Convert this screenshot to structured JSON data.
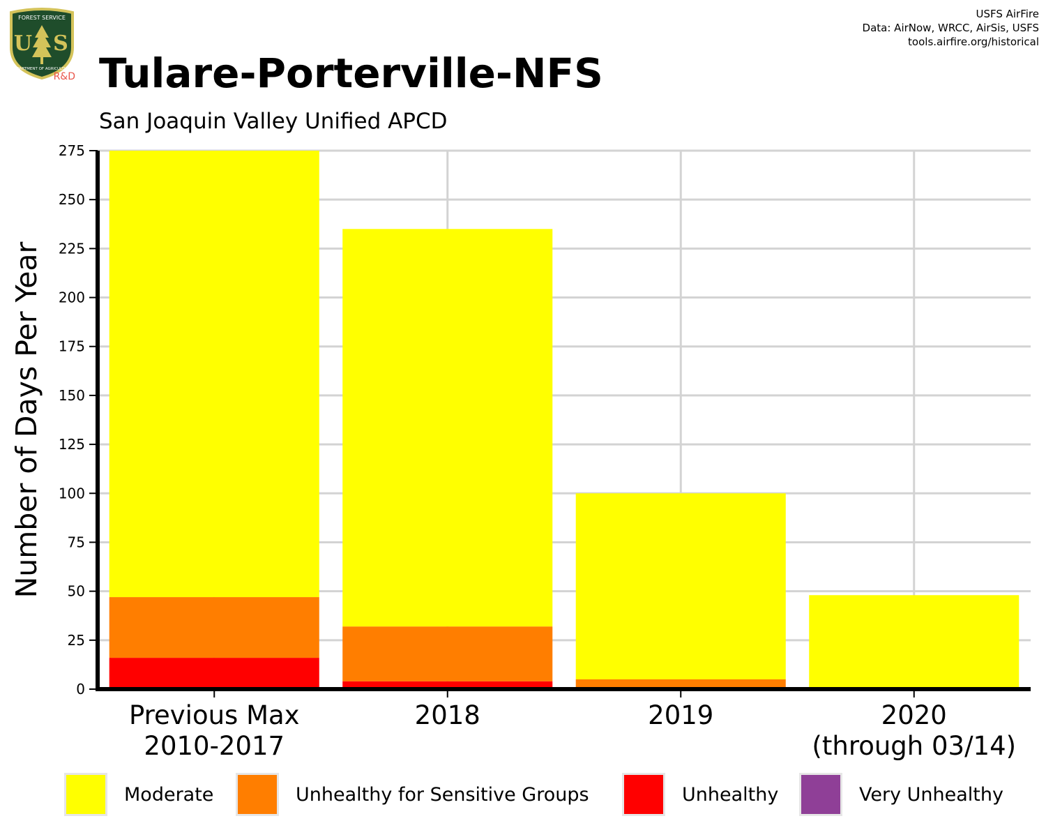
{
  "header": {
    "title": "Tulare-Porterville-NFS",
    "subtitle": "San Joaquin Valley Unified APCD",
    "credit_lines": [
      "USFS AirFire",
      "Data: AirNow, WRCC, AirSis, USFS",
      "tools.airfire.org/historical"
    ]
  },
  "logo": {
    "top_text": "FOREST SERVICE",
    "letters": "US",
    "bottom_text": "DEPARTMENT OF AGRICULTURE",
    "tag": "R&D",
    "colors": {
      "shield": "#1f4d2b",
      "trim": "#d4c35a",
      "tag": "#e8554a"
    }
  },
  "chart_data": {
    "type": "bar",
    "stacked": true,
    "categories": [
      [
        "Previous Max",
        "2010-2017"
      ],
      [
        "2018"
      ],
      [
        "2019"
      ],
      [
        "2020",
        "(through 03/14)"
      ]
    ],
    "ylabel": "Number of Days Per Year",
    "ylim": [
      0,
      275
    ],
    "yticks": [
      0,
      25,
      50,
      75,
      100,
      125,
      150,
      175,
      200,
      225,
      250,
      275
    ],
    "grid": true,
    "legend_position": "bottom",
    "series": [
      {
        "name": "Unhealthy",
        "color": "#ff0000",
        "values": [
          16,
          4,
          0,
          0
        ]
      },
      {
        "name": "Unhealthy for Sensitive Groups",
        "color": "#ff7e00",
        "values": [
          31,
          28,
          5,
          0
        ]
      },
      {
        "name": "Moderate",
        "color": "#ffff00",
        "values": [
          228,
          203,
          95,
          48
        ]
      },
      {
        "name": "Very Unhealthy",
        "color": "#8f3f97",
        "values": [
          0,
          0,
          0,
          0
        ]
      }
    ],
    "legend_order": [
      "Moderate",
      "Unhealthy for Sensitive Groups",
      "Unhealthy",
      "Very Unhealthy"
    ]
  }
}
